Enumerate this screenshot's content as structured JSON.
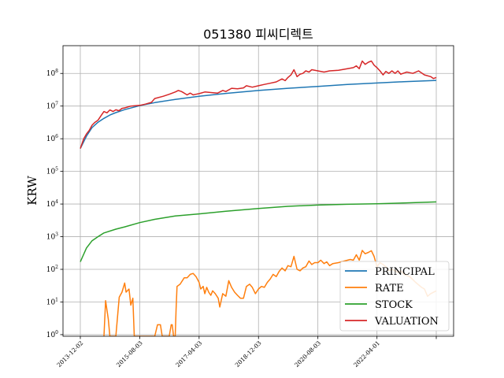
{
  "chart_data": {
    "type": "line",
    "title": "051380 피씨디렉트",
    "xlabel": "",
    "ylabel": "KRW",
    "yscale": "log",
    "ylim_exp": [
      -0.05,
      8.85
    ],
    "grid": true,
    "legend_position": "bottom-right",
    "x_start": "2013-12-02",
    "x_end": "2023-11-30",
    "x_ticks": [
      "2013-12-02",
      "2015-08-03",
      "2017-04-03",
      "2018-12-03",
      "2020-08-03",
      "2022-04-01"
    ],
    "y_ticks": [
      {
        "label": "10",
        "sup": "0",
        "value": 1
      },
      {
        "label": "10",
        "sup": "1",
        "value": 10
      },
      {
        "label": "10",
        "sup": "2",
        "value": 100
      },
      {
        "label": "10",
        "sup": "3",
        "value": 1000
      },
      {
        "label": "10",
        "sup": "4",
        "value": 10000
      },
      {
        "label": "10",
        "sup": "5",
        "value": 100000
      },
      {
        "label": "10",
        "sup": "6",
        "value": 1000000
      },
      {
        "label": "10",
        "sup": "7",
        "value": 10000000
      },
      {
        "label": "10",
        "sup": "8",
        "value": 100000000
      }
    ],
    "series": [
      {
        "name": "PRINCIPAL",
        "color": "#1f77b4",
        "points": [
          [
            "2013-12-02",
            500000
          ],
          [
            "2014-02-03",
            1200000
          ],
          [
            "2014-04-01",
            2200000
          ],
          [
            "2014-06-02",
            3200000
          ],
          [
            "2014-08-01",
            4200000
          ],
          [
            "2014-10-01",
            5300000
          ],
          [
            "2014-12-01",
            6300000
          ],
          [
            "2015-03-02",
            7800000
          ],
          [
            "2015-08-03",
            10300000
          ],
          [
            "2016-01-04",
            12800000
          ],
          [
            "2016-08-01",
            16000000
          ],
          [
            "2017-04-03",
            20000000
          ],
          [
            "2018-01-02",
            24500000
          ],
          [
            "2018-12-03",
            30000000
          ],
          [
            "2019-10-01",
            35000000
          ],
          [
            "2020-08-03",
            40000000
          ],
          [
            "2021-06-01",
            46000000
          ],
          [
            "2022-04-01",
            51000000
          ],
          [
            "2023-01-02",
            56000000
          ],
          [
            "2023-11-30",
            61000000
          ]
        ]
      },
      {
        "name": "RATE",
        "color": "#ff7f0e",
        "points": [
          [
            "2014-08-01",
            0.8
          ],
          [
            "2014-08-18",
            11
          ],
          [
            "2014-09-15",
            3
          ],
          [
            "2014-10-01",
            0.5
          ],
          [
            "2014-12-01",
            0.5
          ],
          [
            "2015-01-05",
            14
          ],
          [
            "2015-02-02",
            20
          ],
          [
            "2015-03-02",
            38
          ],
          [
            "2015-03-16",
            20
          ],
          [
            "2015-04-15",
            25
          ],
          [
            "2015-05-04",
            8
          ],
          [
            "2015-05-25",
            13
          ],
          [
            "2015-06-08",
            0.5
          ],
          [
            "2016-01-04",
            0.5
          ],
          [
            "2016-02-01",
            2
          ],
          [
            "2016-03-02",
            2
          ],
          [
            "2016-03-21",
            0.5
          ],
          [
            "2016-06-01",
            0.5
          ],
          [
            "2016-06-21",
            2
          ],
          [
            "2016-07-01",
            2
          ],
          [
            "2016-07-15",
            0.5
          ],
          [
            "2016-08-01",
            0.5
          ],
          [
            "2016-08-10",
            6
          ],
          [
            "2016-08-20",
            30
          ],
          [
            "2016-09-20",
            35
          ],
          [
            "2016-11-01",
            55
          ],
          [
            "2016-12-01",
            55
          ],
          [
            "2017-01-02",
            70
          ],
          [
            "2017-02-01",
            75
          ],
          [
            "2017-03-02",
            60
          ],
          [
            "2017-04-03",
            40
          ],
          [
            "2017-04-20",
            25
          ],
          [
            "2017-05-15",
            30
          ],
          [
            "2017-06-01",
            18
          ],
          [
            "2017-06-20",
            28
          ],
          [
            "2017-07-10",
            20
          ],
          [
            "2017-08-01",
            16
          ],
          [
            "2017-08-20",
            22
          ],
          [
            "2017-09-15",
            18
          ],
          [
            "2017-10-16",
            13
          ],
          [
            "2017-11-01",
            7
          ],
          [
            "2017-12-01",
            18
          ],
          [
            "2018-01-02",
            15
          ],
          [
            "2018-02-01",
            45
          ],
          [
            "2018-03-02",
            28
          ],
          [
            "2018-04-02",
            20
          ],
          [
            "2018-05-02",
            16
          ],
          [
            "2018-06-01",
            13
          ],
          [
            "2018-07-02",
            13
          ],
          [
            "2018-08-01",
            30
          ],
          [
            "2018-09-03",
            35
          ],
          [
            "2018-10-01",
            28
          ],
          [
            "2018-11-01",
            18
          ],
          [
            "2018-12-03",
            25
          ],
          [
            "2019-01-02",
            30
          ],
          [
            "2019-02-01",
            28
          ],
          [
            "2019-03-04",
            40
          ],
          [
            "2019-04-01",
            50
          ],
          [
            "2019-05-02",
            70
          ],
          [
            "2019-06-03",
            60
          ],
          [
            "2019-07-01",
            85
          ],
          [
            "2019-08-01",
            110
          ],
          [
            "2019-09-02",
            90
          ],
          [
            "2019-10-01",
            130
          ],
          [
            "2019-11-01",
            120
          ],
          [
            "2019-12-02",
            250
          ],
          [
            "2020-01-02",
            100
          ],
          [
            "2020-02-03",
            90
          ],
          [
            "2020-03-02",
            110
          ],
          [
            "2020-04-01",
            120
          ],
          [
            "2020-05-04",
            180
          ],
          [
            "2020-06-01",
            140
          ],
          [
            "2020-07-01",
            160
          ],
          [
            "2020-08-03",
            160
          ],
          [
            "2020-09-01",
            190
          ],
          [
            "2020-10-05",
            150
          ],
          [
            "2020-11-02",
            170
          ],
          [
            "2020-12-01",
            130
          ],
          [
            "2021-01-04",
            150
          ],
          [
            "2021-03-02",
            160
          ],
          [
            "2021-05-03",
            180
          ],
          [
            "2021-07-01",
            200
          ],
          [
            "2021-08-02",
            190
          ],
          [
            "2021-09-01",
            280
          ],
          [
            "2021-10-01",
            190
          ],
          [
            "2021-11-01",
            380
          ],
          [
            "2021-12-01",
            300
          ],
          [
            "2022-01-03",
            330
          ],
          [
            "2022-02-03",
            370
          ],
          [
            "2022-03-02",
            250
          ],
          [
            "2022-04-01",
            120
          ],
          [
            "2022-05-02",
            160
          ],
          [
            "2022-06-02",
            140
          ],
          [
            "2022-07-01",
            120
          ],
          [
            "2022-08-01",
            90
          ],
          [
            "2022-09-01",
            100
          ],
          [
            "2022-10-04",
            90
          ],
          [
            "2022-11-01",
            80
          ],
          [
            "2022-12-01",
            90
          ],
          [
            "2023-01-02",
            70
          ],
          [
            "2023-03-02",
            60
          ],
          [
            "2023-05-02",
            40
          ],
          [
            "2023-07-03",
            28
          ],
          [
            "2023-08-01",
            25
          ],
          [
            "2023-09-01",
            15
          ],
          [
            "2023-10-04",
            18
          ],
          [
            "2023-11-30",
            22
          ]
        ]
      },
      {
        "name": "STOCK",
        "color": "#2ca02c",
        "points": [
          [
            "2013-12-02",
            170
          ],
          [
            "2014-02-03",
            450
          ],
          [
            "2014-04-01",
            750
          ],
          [
            "2014-06-02",
            1000
          ],
          [
            "2014-08-01",
            1300
          ],
          [
            "2014-12-01",
            1700
          ],
          [
            "2015-03-02",
            2000
          ],
          [
            "2015-08-03",
            2700
          ],
          [
            "2016-01-04",
            3400
          ],
          [
            "2016-08-01",
            4300
          ],
          [
            "2017-04-03",
            5000
          ],
          [
            "2018-01-02",
            6000
          ],
          [
            "2018-12-03",
            7300
          ],
          [
            "2019-10-01",
            8500
          ],
          [
            "2020-08-03",
            9300
          ],
          [
            "2021-06-01",
            9800
          ],
          [
            "2022-04-01",
            10200
          ],
          [
            "2023-01-02",
            10800
          ],
          [
            "2023-11-30",
            11600
          ]
        ]
      },
      {
        "name": "VALUATION",
        "color": "#d62728",
        "points": [
          [
            "2013-12-02",
            500000
          ],
          [
            "2014-01-06",
            1000000
          ],
          [
            "2014-02-03",
            1400000
          ],
          [
            "2014-03-03",
            1800000
          ],
          [
            "2014-04-01",
            2600000
          ],
          [
            "2014-05-02",
            3200000
          ],
          [
            "2014-06-02",
            3700000
          ],
          [
            "2014-07-01",
            5000000
          ],
          [
            "2014-08-01",
            6800000
          ],
          [
            "2014-09-01",
            6200000
          ],
          [
            "2014-10-01",
            7600000
          ],
          [
            "2014-11-03",
            6800000
          ],
          [
            "2014-12-01",
            7700000
          ],
          [
            "2015-01-02",
            7200000
          ],
          [
            "2015-02-02",
            8500000
          ],
          [
            "2015-03-02",
            8800000
          ],
          [
            "2015-05-04",
            10000000
          ],
          [
            "2015-08-03",
            10500000
          ],
          [
            "2015-10-01",
            11500000
          ],
          [
            "2015-12-01",
            13000000
          ],
          [
            "2016-01-04",
            17000000
          ],
          [
            "2016-04-01",
            20000000
          ],
          [
            "2016-06-01",
            23000000
          ],
          [
            "2016-08-01",
            27000000
          ],
          [
            "2016-09-01",
            30000000
          ],
          [
            "2016-10-04",
            28000000
          ],
          [
            "2016-11-01",
            25000000
          ],
          [
            "2016-12-01",
            22000000
          ],
          [
            "2017-01-02",
            25000000
          ],
          [
            "2017-02-01",
            22000000
          ],
          [
            "2017-03-02",
            23000000
          ],
          [
            "2017-04-03",
            24000000
          ],
          [
            "2017-06-01",
            27000000
          ],
          [
            "2017-08-01",
            26000000
          ],
          [
            "2017-10-10",
            25000000
          ],
          [
            "2017-12-01",
            30000000
          ],
          [
            "2018-01-02",
            28000000
          ],
          [
            "2018-03-02",
            35000000
          ],
          [
            "2018-05-02",
            34000000
          ],
          [
            "2018-07-02",
            36000000
          ],
          [
            "2018-08-01",
            42000000
          ],
          [
            "2018-10-01",
            38000000
          ],
          [
            "2018-12-03",
            42000000
          ],
          [
            "2019-02-01",
            46000000
          ],
          [
            "2019-04-01",
            50000000
          ],
          [
            "2019-06-03",
            55000000
          ],
          [
            "2019-08-01",
            68000000
          ],
          [
            "2019-09-02",
            60000000
          ],
          [
            "2019-10-01",
            75000000
          ],
          [
            "2019-11-01",
            90000000
          ],
          [
            "2019-12-02",
            130000000
          ],
          [
            "2020-01-02",
            80000000
          ],
          [
            "2020-02-03",
            95000000
          ],
          [
            "2020-03-02",
            100000000
          ],
          [
            "2020-04-01",
            120000000
          ],
          [
            "2020-05-04",
            110000000
          ],
          [
            "2020-06-01",
            130000000
          ],
          [
            "2020-08-03",
            120000000
          ],
          [
            "2020-10-05",
            110000000
          ],
          [
            "2020-12-01",
            120000000
          ],
          [
            "2021-03-02",
            125000000
          ],
          [
            "2021-06-01",
            140000000
          ],
          [
            "2021-08-02",
            150000000
          ],
          [
            "2021-09-01",
            170000000
          ],
          [
            "2021-10-01",
            140000000
          ],
          [
            "2021-11-01",
            240000000
          ],
          [
            "2021-12-01",
            190000000
          ],
          [
            "2022-01-03",
            220000000
          ],
          [
            "2022-02-03",
            240000000
          ],
          [
            "2022-03-02",
            180000000
          ],
          [
            "2022-04-01",
            150000000
          ],
          [
            "2022-05-02",
            120000000
          ],
          [
            "2022-06-02",
            90000000
          ],
          [
            "2022-07-01",
            115000000
          ],
          [
            "2022-08-01",
            100000000
          ],
          [
            "2022-09-01",
            120000000
          ],
          [
            "2022-10-04",
            100000000
          ],
          [
            "2022-11-01",
            120000000
          ],
          [
            "2022-12-01",
            95000000
          ],
          [
            "2023-02-01",
            110000000
          ],
          [
            "2023-04-03",
            100000000
          ],
          [
            "2023-06-01",
            120000000
          ],
          [
            "2023-08-01",
            90000000
          ],
          [
            "2023-10-04",
            80000000
          ],
          [
            "2023-11-01",
            70000000
          ],
          [
            "2023-11-30",
            75000000
          ]
        ]
      }
    ]
  }
}
